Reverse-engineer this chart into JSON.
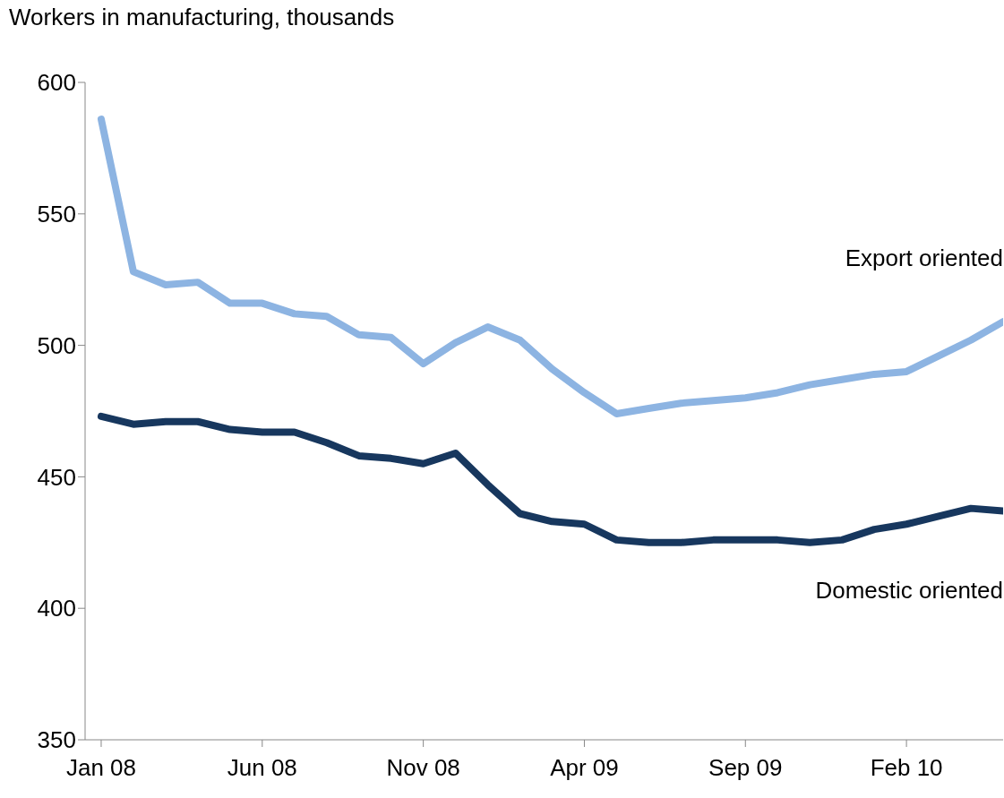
{
  "chart_data": {
    "type": "line",
    "ylabel": "Workers in manufacturing, thousands",
    "categories": [
      "Jan 08",
      null,
      null,
      null,
      null,
      "Jun 08",
      null,
      null,
      null,
      null,
      "Nov 08",
      null,
      null,
      null,
      null,
      "Apr 09",
      null,
      null,
      null,
      null,
      "Sep 09",
      null,
      null,
      null,
      null,
      "Feb 10",
      null,
      null,
      null
    ],
    "series": [
      {
        "name": "Export oriented",
        "color": "#8db4e2",
        "values": [
          586,
          528,
          523,
          524,
          516,
          516,
          512,
          511,
          504,
          503,
          493,
          501,
          507,
          502,
          491,
          482,
          474,
          476,
          478,
          479,
          480,
          482,
          485,
          487,
          489,
          490,
          496,
          502,
          509
        ]
      },
      {
        "name": "Domestic oriented",
        "color": "#17375e",
        "values": [
          473,
          470,
          471,
          471,
          468,
          467,
          467,
          463,
          458,
          457,
          455,
          459,
          447,
          436,
          433,
          432,
          426,
          425,
          425,
          426,
          426,
          426,
          425,
          426,
          430,
          432,
          435,
          438,
          437
        ]
      }
    ],
    "ylim": [
      350,
      600
    ],
    "yticks": [
      350,
      400,
      450,
      500,
      550,
      600
    ],
    "grid": false,
    "legend": false,
    "marker": "none",
    "line_style": "solid"
  }
}
